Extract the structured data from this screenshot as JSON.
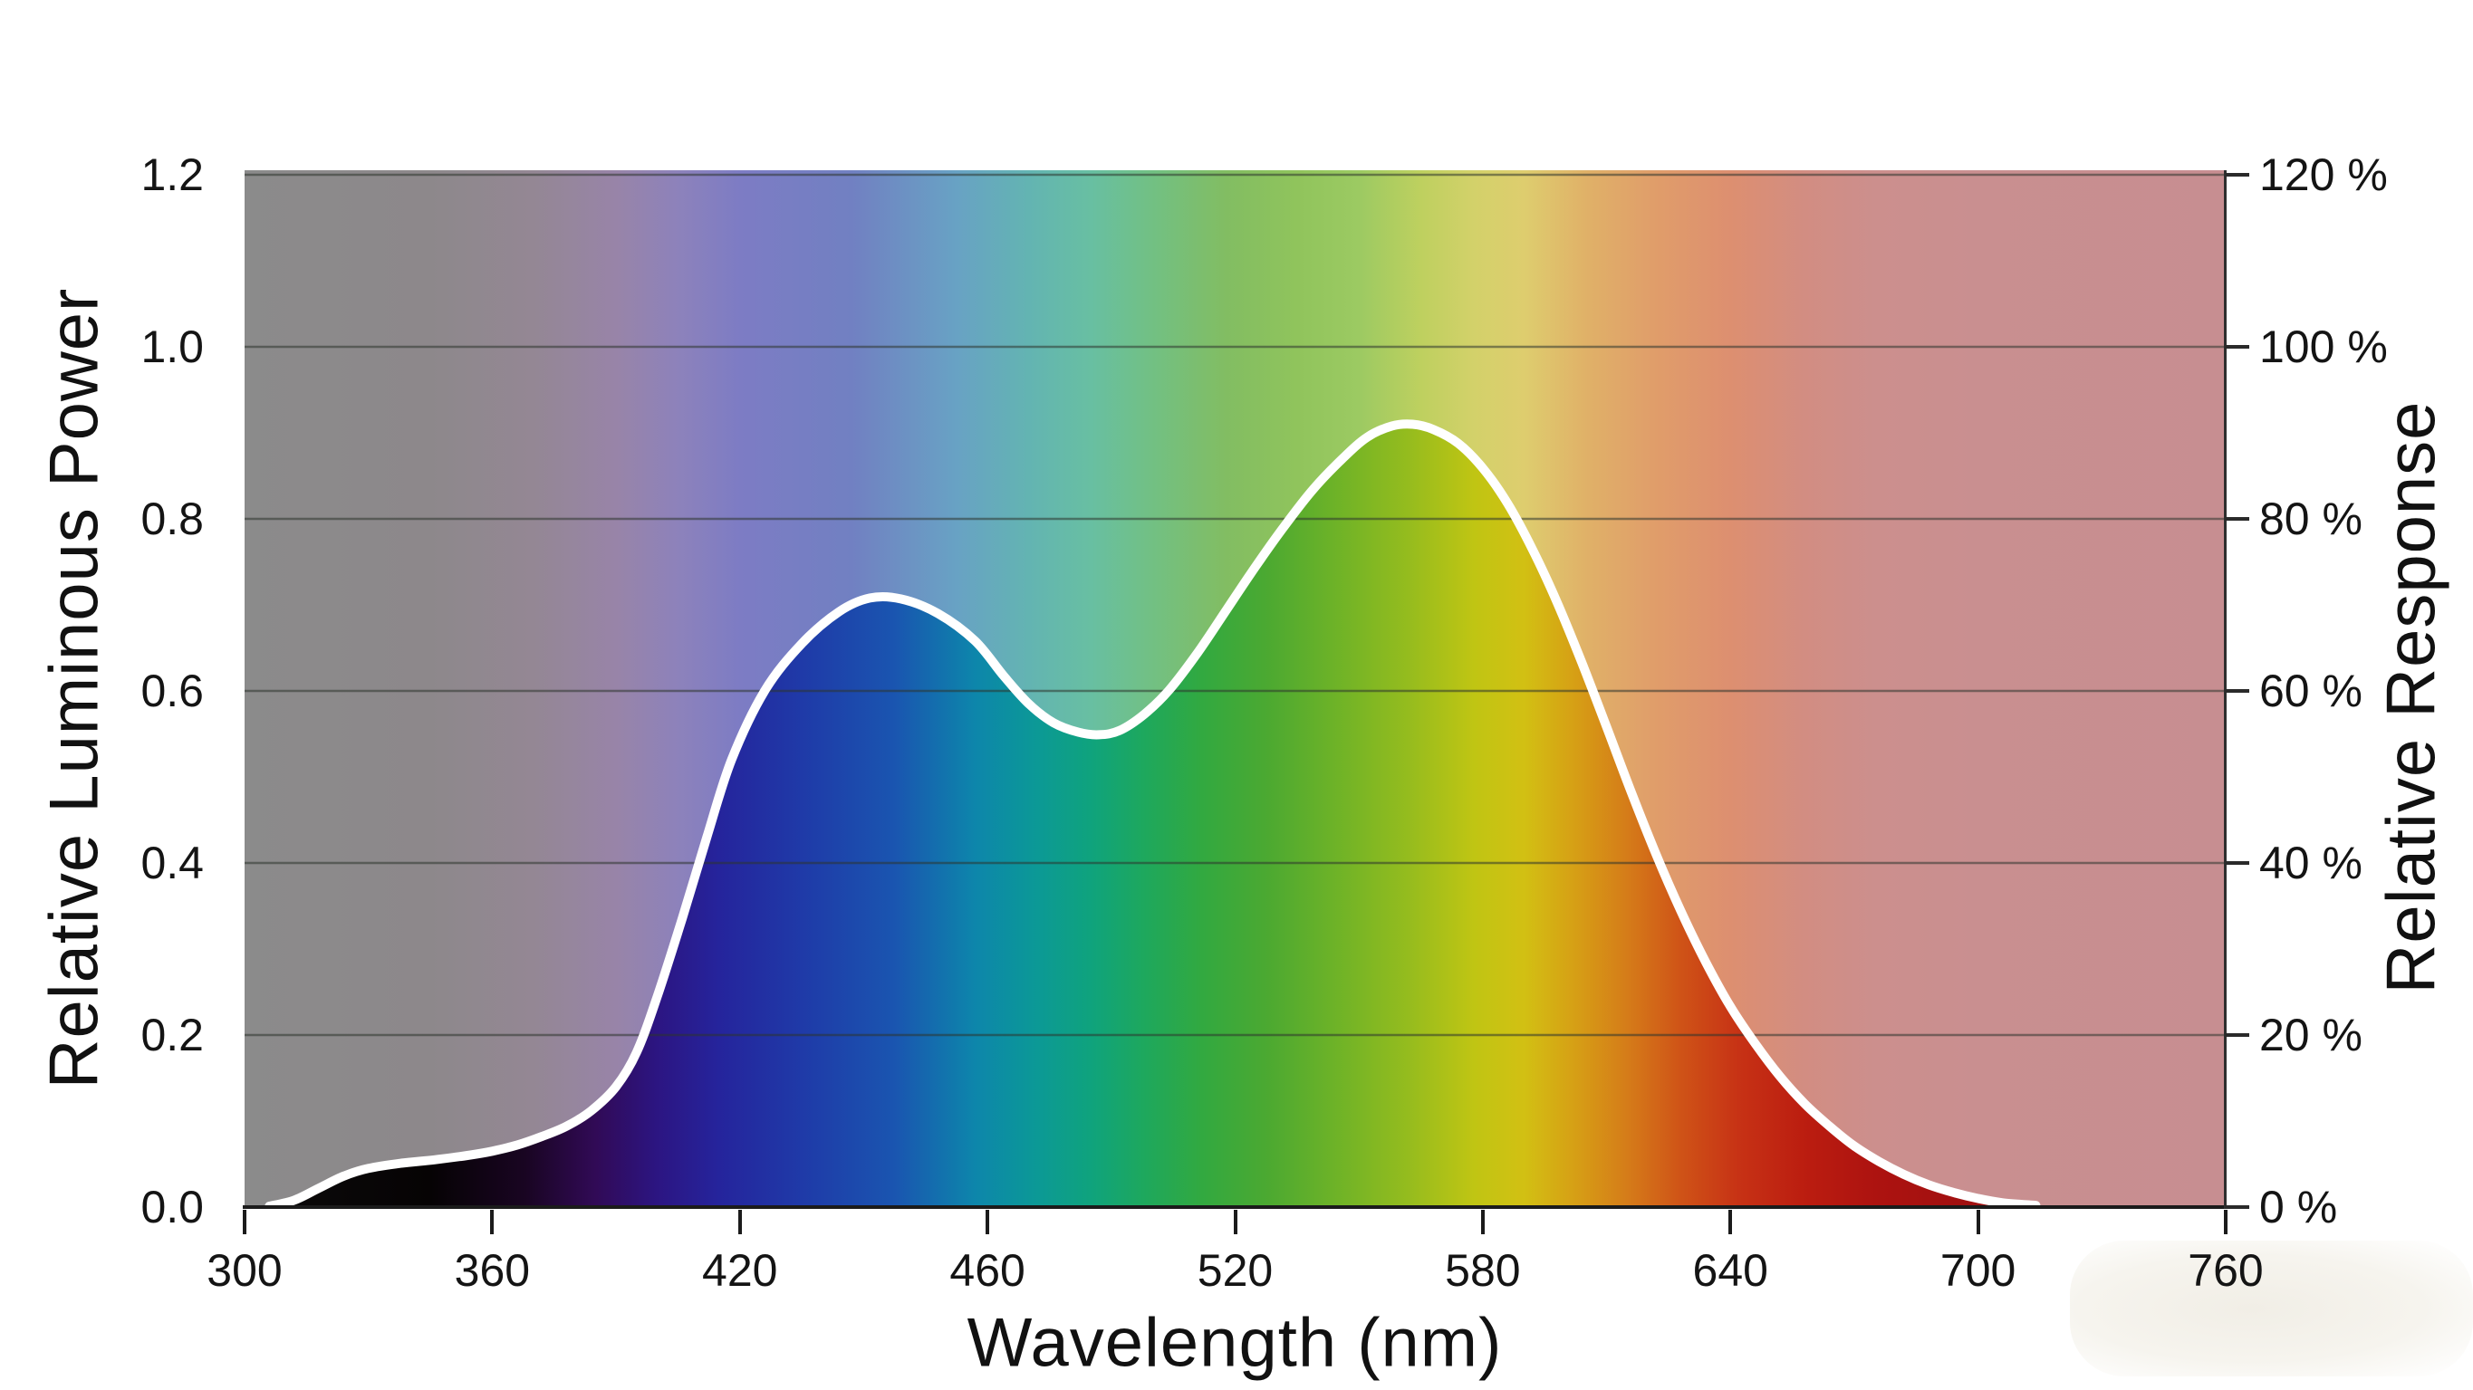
{
  "chart_data": {
    "type": "area",
    "xlabel": "Wavelength (nm)",
    "ylabel_left": "Relative Luminous Power",
    "ylabel_right": "Relative Response",
    "x_tick_labels": [
      "300",
      "360",
      "420",
      "460",
      "520",
      "580",
      "640",
      "700",
      "760"
    ],
    "x_tick_values": [
      300,
      360,
      420,
      460,
      520,
      580,
      640,
      700,
      760
    ],
    "y_left_tick_labels": [
      "1.2",
      "1.0",
      "0.8",
      "0.6",
      "0.4",
      "0.2",
      "0.0"
    ],
    "y_left_tick_values": [
      1.2,
      1.0,
      0.8,
      0.6,
      0.4,
      0.2,
      0.0
    ],
    "y_right_tick_labels": [
      "120 %",
      "100 %",
      "80 %",
      "60 %",
      "40 %",
      "20 %",
      "0 %"
    ],
    "y_left_range": [
      0,
      1.2
    ],
    "y_right_range_percent": [
      0,
      120
    ],
    "grid": true,
    "grid_values": [
      0.2,
      0.4,
      0.6,
      0.8,
      1.0,
      1.2
    ],
    "series": [
      {
        "name": "Relative Luminous Power",
        "points": [
          [
            300,
            0.0
          ],
          [
            306,
            0.001
          ],
          [
            312,
            0.008
          ],
          [
            318,
            0.022
          ],
          [
            324,
            0.036
          ],
          [
            330,
            0.045
          ],
          [
            338,
            0.051
          ],
          [
            346,
            0.055
          ],
          [
            354,
            0.06
          ],
          [
            360,
            0.065
          ],
          [
            366,
            0.072
          ],
          [
            372,
            0.082
          ],
          [
            378,
            0.094
          ],
          [
            384,
            0.112
          ],
          [
            390,
            0.14
          ],
          [
            395,
            0.18
          ],
          [
            400,
            0.245
          ],
          [
            406,
            0.335
          ],
          [
            412,
            0.43
          ],
          [
            418,
            0.52
          ],
          [
            424,
            0.6
          ],
          [
            430,
            0.655
          ],
          [
            436,
            0.692
          ],
          [
            441,
            0.708
          ],
          [
            446,
            0.707
          ],
          [
            452,
            0.69
          ],
          [
            458,
            0.658
          ],
          [
            464,
            0.617
          ],
          [
            470,
            0.585
          ],
          [
            476,
            0.563
          ],
          [
            482,
            0.552
          ],
          [
            487,
            0.549
          ],
          [
            492,
            0.554
          ],
          [
            498,
            0.573
          ],
          [
            504,
            0.601
          ],
          [
            511,
            0.645
          ],
          [
            518,
            0.695
          ],
          [
            525,
            0.745
          ],
          [
            532,
            0.792
          ],
          [
            539,
            0.835
          ],
          [
            546,
            0.87
          ],
          [
            552,
            0.895
          ],
          [
            558,
            0.908
          ],
          [
            563,
            0.91
          ],
          [
            568,
            0.904
          ],
          [
            574,
            0.888
          ],
          [
            580,
            0.859
          ],
          [
            586,
            0.818
          ],
          [
            592,
            0.765
          ],
          [
            598,
            0.703
          ],
          [
            604,
            0.633
          ],
          [
            610,
            0.558
          ],
          [
            616,
            0.482
          ],
          [
            622,
            0.41
          ],
          [
            628,
            0.344
          ],
          [
            634,
            0.285
          ],
          [
            640,
            0.233
          ],
          [
            646,
            0.19
          ],
          [
            652,
            0.152
          ],
          [
            658,
            0.12
          ],
          [
            664,
            0.094
          ],
          [
            670,
            0.071
          ],
          [
            676,
            0.053
          ],
          [
            682,
            0.038
          ],
          [
            688,
            0.026
          ],
          [
            694,
            0.017
          ],
          [
            700,
            0.01
          ],
          [
            706,
            0.005
          ],
          [
            714,
            0.002
          ],
          [
            726,
            0.001
          ],
          [
            760,
            0.0
          ]
        ],
        "peak_1": {
          "wavelength_nm": 443,
          "value": 0.71
        },
        "dip": {
          "wavelength_nm": 485,
          "value": 0.55
        },
        "peak_2": {
          "wavelength_nm": 558,
          "value": 0.91
        }
      }
    ],
    "background": {
      "saturated_stops_below_curve": [
        {
          "wl": 300,
          "color": "#0c0b0b"
        },
        {
          "wl": 345,
          "color": "#060304"
        },
        {
          "wl": 368,
          "color": "#190522"
        },
        {
          "wl": 385,
          "color": "#310a56"
        },
        {
          "wl": 400,
          "color": "#2c1582"
        },
        {
          "wl": 415,
          "color": "#25249c"
        },
        {
          "wl": 430,
          "color": "#1f3aa8"
        },
        {
          "wl": 445,
          "color": "#1a55b0"
        },
        {
          "wl": 458,
          "color": "#0d86ab"
        },
        {
          "wl": 472,
          "color": "#0c9996"
        },
        {
          "wl": 485,
          "color": "#0fa37d"
        },
        {
          "wl": 498,
          "color": "#1ea85d"
        },
        {
          "wl": 512,
          "color": "#32a940"
        },
        {
          "wl": 528,
          "color": "#4ca931"
        },
        {
          "wl": 545,
          "color": "#6fb327"
        },
        {
          "wl": 562,
          "color": "#95bc1e"
        },
        {
          "wl": 578,
          "color": "#c0c513"
        },
        {
          "wl": 590,
          "color": "#d2c013"
        },
        {
          "wl": 602,
          "color": "#d6a015"
        },
        {
          "wl": 615,
          "color": "#d57c19"
        },
        {
          "wl": 628,
          "color": "#cf5317"
        },
        {
          "wl": 642,
          "color": "#c73215"
        },
        {
          "wl": 658,
          "color": "#bb1d10"
        },
        {
          "wl": 675,
          "color": "#ad1310"
        },
        {
          "wl": 695,
          "color": "#a21010"
        },
        {
          "wl": 720,
          "color": "#9a0e0d"
        },
        {
          "wl": 760,
          "color": "#940d0b"
        }
      ],
      "washed_stops_above_curve": [
        {
          "wl": 300,
          "color": "#8b8b8b"
        },
        {
          "wl": 345,
          "color": "#8d888b"
        },
        {
          "wl": 370,
          "color": "#948794"
        },
        {
          "wl": 390,
          "color": "#9884a8"
        },
        {
          "wl": 405,
          "color": "#8d82bb"
        },
        {
          "wl": 420,
          "color": "#7d7cc4"
        },
        {
          "wl": 438,
          "color": "#7180c2"
        },
        {
          "wl": 455,
          "color": "#68a2c4"
        },
        {
          "wl": 470,
          "color": "#63b4b2"
        },
        {
          "wl": 485,
          "color": "#68bfa2"
        },
        {
          "wl": 500,
          "color": "#72c083"
        },
        {
          "wl": 518,
          "color": "#82bd62"
        },
        {
          "wl": 535,
          "color": "#90c45c"
        },
        {
          "wl": 550,
          "color": "#9cca62"
        },
        {
          "wl": 565,
          "color": "#bed05f"
        },
        {
          "wl": 578,
          "color": "#d3d16a"
        },
        {
          "wl": 590,
          "color": "#decd6e"
        },
        {
          "wl": 605,
          "color": "#e0b168"
        },
        {
          "wl": 622,
          "color": "#e09d6a"
        },
        {
          "wl": 640,
          "color": "#dd8f70"
        },
        {
          "wl": 658,
          "color": "#d28d82"
        },
        {
          "wl": 675,
          "color": "#cc8f8d"
        },
        {
          "wl": 700,
          "color": "#c98f90"
        },
        {
          "wl": 760,
          "color": "#c78e91"
        }
      ]
    },
    "colors": {
      "curve": "#ffffff",
      "gridline": "rgba(45,52,45,0.55)",
      "axis": "#1b1b1b",
      "text": "#141414",
      "page_background": "#ffffff"
    },
    "legend": {
      "visible": false
    }
  }
}
